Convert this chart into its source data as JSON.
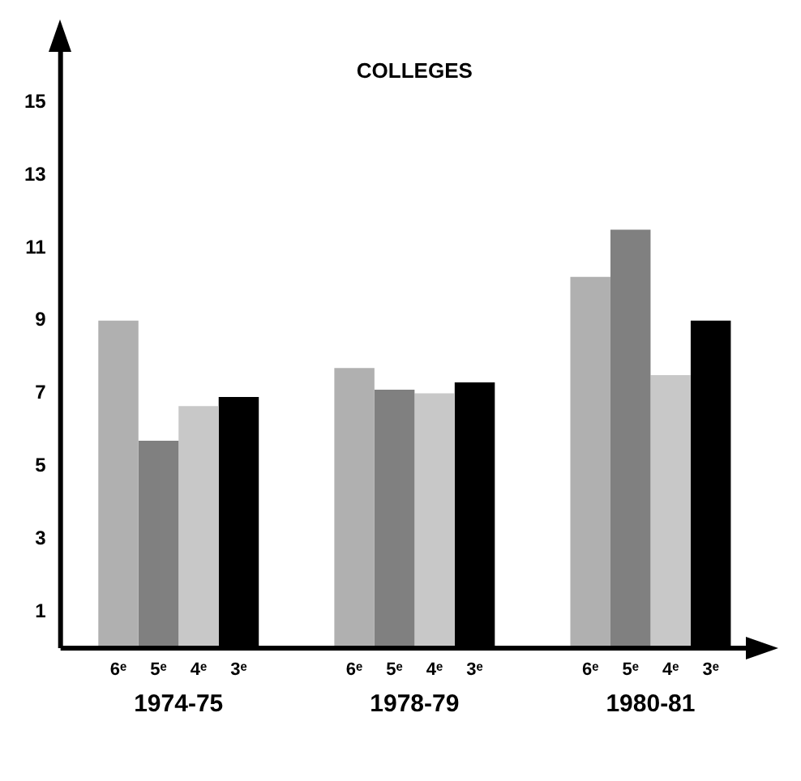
{
  "chart_data": {
    "type": "bar",
    "title": "COLLEGES",
    "categories": [
      "1974-75",
      "1978-79",
      "1980-81"
    ],
    "series": [
      {
        "name": "6ᵉ",
        "color": "#b0b0b0",
        "values": [
          9.0,
          7.7,
          10.2
        ]
      },
      {
        "name": "5ᵉ",
        "color": "#808080",
        "values": [
          5.7,
          7.1,
          11.5
        ]
      },
      {
        "name": "4ᵉ",
        "color": "#c8c8c8",
        "values": [
          6.65,
          7.0,
          7.5
        ]
      },
      {
        "name": "3ᵉ",
        "color": "#000000",
        "values": [
          6.9,
          7.3,
          9.0
        ]
      }
    ],
    "ylim": [
      0,
      17
    ],
    "yticks": [
      1,
      3,
      5,
      7,
      9,
      11,
      13,
      15
    ],
    "grid": false,
    "legend": false
  }
}
